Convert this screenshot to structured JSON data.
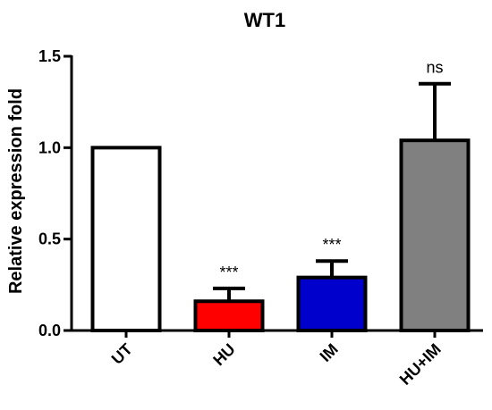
{
  "chart_data": {
    "type": "bar",
    "title": "WT1",
    "ylabel": "Relative expression fold",
    "xlabel": "",
    "categories": [
      "UT",
      "HU",
      "IM",
      "HU+IM"
    ],
    "values": [
      1.0,
      0.16,
      0.29,
      1.04
    ],
    "errors": [
      0.0,
      0.07,
      0.09,
      0.31
    ],
    "annotations": [
      "",
      "***",
      "***",
      "ns"
    ],
    "colors": [
      "#ffffff",
      "#ff0000",
      "#0000cc",
      "#808080"
    ],
    "ylim": [
      0,
      1.5
    ],
    "yticks": [
      "0.0",
      "0.5",
      "1.0",
      "1.5"
    ],
    "grid": false,
    "legend": "none"
  }
}
